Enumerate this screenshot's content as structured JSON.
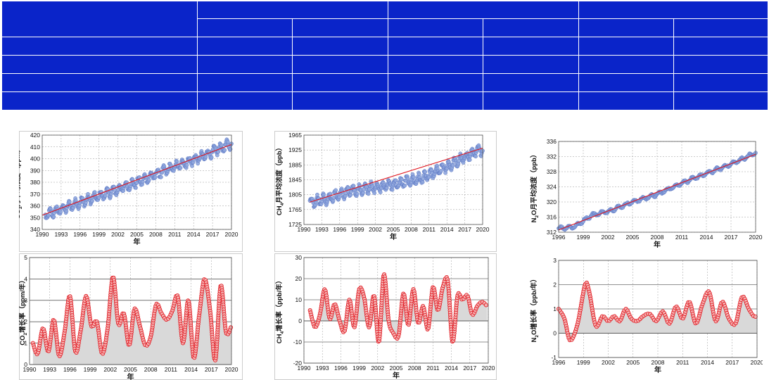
{
  "table": {
    "header_cells": 4,
    "sub_header_cells": 6,
    "body_rows": 4,
    "body_cells_per_row": 7,
    "fill_color": "#0a24c9"
  },
  "colors": {
    "marker_fill": "#8fa6dd",
    "marker_stroke": "#5b77c4",
    "trend_line": "#e0151d",
    "growth_line": "#e0151d",
    "growth_marker_fill": "#f4b0b0",
    "growth_area": "#d9d9d9"
  },
  "chart_data": [
    {
      "id": "co2-concentration",
      "type": "scatter",
      "xlabel": "年",
      "ylabel_main": "CO",
      "ylabel_sub": "2",
      "ylabel_rest": "月平均浓度（ppm）",
      "xlim": [
        1990,
        2020
      ],
      "xticks": [
        "1990",
        "1993",
        "1996",
        "1999",
        "2002",
        "2005",
        "2008",
        "2011",
        "2014",
        "2017",
        "2020"
      ],
      "ylim": [
        340,
        420
      ],
      "yticks": [
        "340",
        "350",
        "360",
        "370",
        "380",
        "390",
        "400",
        "410",
        "420"
      ],
      "grid": true,
      "trend": {
        "x": [
          1990,
          2020
        ],
        "y": [
          352,
          412
        ]
      },
      "anchors": {
        "x": [
          1990.5,
          1995,
          2000,
          2005,
          2010,
          2015,
          2020
        ],
        "y": [
          352,
          361,
          370,
          380,
          391,
          401,
          413
        ]
      },
      "seasonal_amplitude": 3.5
    },
    {
      "id": "ch4-concentration",
      "type": "scatter",
      "xlabel": "年",
      "ylabel_main": "CH",
      "ylabel_sub": "4",
      "ylabel_rest": "月平均浓度（ppb）",
      "xlim": [
        1990,
        2020
      ],
      "xticks": [
        "1990",
        "1993",
        "1996",
        "1999",
        "2002",
        "2005",
        "2008",
        "2011",
        "2014",
        "2017",
        "2020"
      ],
      "ylim": [
        1725,
        1965
      ],
      "yticks": [
        "1725",
        "1765",
        "1805",
        "1845",
        "1885",
        "1925",
        "1965"
      ],
      "grid": true,
      "trend": {
        "x": [
          1991,
          2020
        ],
        "y": [
          1785,
          1930
        ]
      },
      "anchors": {
        "x": [
          1991,
          1994,
          1998,
          2002,
          2006,
          2010,
          2014,
          2017,
          2020
        ],
        "y": [
          1785,
          1795,
          1815,
          1825,
          1835,
          1850,
          1880,
          1905,
          1928
        ]
      },
      "seasonal_amplitude": 12
    },
    {
      "id": "n2o-concentration",
      "type": "scatter",
      "xlabel": "年",
      "ylabel_main": "N",
      "ylabel_sub": "2",
      "ylabel_rest": "O月平均浓度（ppb）",
      "xlim": [
        1996,
        2020
      ],
      "xticks": [
        "1996",
        "1999",
        "2002",
        "2005",
        "2008",
        "2011",
        "2014",
        "2017",
        "2020"
      ],
      "ylim": [
        312,
        336
      ],
      "yticks": [
        "312",
        "316",
        "320",
        "324",
        "328",
        "332",
        "336"
      ],
      "grid": true,
      "trend": {
        "x": [
          1996,
          2020
        ],
        "y": [
          312.6,
          332.6
        ]
      },
      "anchors": {
        "x": [
          1996,
          1998,
          2000,
          2002,
          2005,
          2008,
          2011,
          2014,
          2017,
          2020
        ],
        "y": [
          313,
          313.5,
          316.5,
          317.5,
          320,
          322,
          325,
          327.5,
          330,
          333
        ]
      },
      "seasonal_amplitude": 0.4
    },
    {
      "id": "co2-growth-rate",
      "type": "area",
      "xlabel": "年",
      "ylabel_main": "CO",
      "ylabel_sub": "2",
      "ylabel_rest": "增长率（ppm/年）",
      "xlim": [
        1990,
        2020
      ],
      "xticks": [
        "1990",
        "1993",
        "1996",
        "1999",
        "2002",
        "2005",
        "2008",
        "2011",
        "2014",
        "2017",
        "2020"
      ],
      "ylim": [
        0,
        5
      ],
      "yticks": [
        "0",
        "1",
        "2",
        "3",
        "4",
        "5"
      ],
      "grid": true,
      "baseline": 0,
      "x": [
        1990.5,
        1991.2,
        1992,
        1992.8,
        1993.6,
        1994.4,
        1995.2,
        1996,
        1996.8,
        1997.6,
        1998.4,
        1999.2,
        2000,
        2000.8,
        2001.6,
        2002.4,
        2003.2,
        2004,
        2004.8,
        2005.6,
        2006.4,
        2007.2,
        2008,
        2008.8,
        2009.6,
        2010.4,
        2011.2,
        2012,
        2012.8,
        2013.6,
        2014.4,
        2015.2,
        2016,
        2016.8,
        2017.6,
        2018.4,
        2019.2,
        2020
      ],
      "y": [
        1.0,
        0.5,
        1.7,
        0.6,
        2.1,
        0.4,
        1.5,
        3.2,
        0.6,
        1.6,
        3.2,
        1.8,
        2.0,
        0.5,
        1.7,
        4.1,
        1.9,
        2.4,
        0.9,
        2.6,
        1.8,
        0.9,
        1.3,
        2.8,
        2.4,
        2.1,
        2.5,
        3.2,
        1.0,
        3.0,
        0.3,
        2.3,
        4.0,
        2.6,
        0.2,
        3.7,
        1.5,
        1.8
      ]
    },
    {
      "id": "ch4-growth-rate",
      "type": "area",
      "xlabel": "年",
      "ylabel_main": "CH",
      "ylabel_sub": "4",
      "ylabel_rest": "增长率（ppb/年）",
      "xlim": [
        1990,
        2020
      ],
      "xticks": [
        "1990",
        "1993",
        "1996",
        "1999",
        "2002",
        "2005",
        "2008",
        "2011",
        "2014",
        "2017",
        "2020"
      ],
      "ylim": [
        -20,
        30
      ],
      "yticks": [
        "-20",
        "-10",
        "0",
        "10",
        "20",
        "30"
      ],
      "grid": true,
      "baseline": 0,
      "x": [
        1991,
        1991.8,
        1992.6,
        1993.4,
        1994.2,
        1995,
        1995.8,
        1996.6,
        1997.4,
        1998.2,
        1999,
        1999.8,
        2000.6,
        2001.4,
        2002.2,
        2003,
        2003.8,
        2004.6,
        2005.4,
        2006.2,
        2007,
        2007.8,
        2008.6,
        2009.4,
        2010.2,
        2011,
        2011.8,
        2012.6,
        2013.4,
        2014.2,
        2015,
        2015.8,
        2016.6,
        2017.4,
        2018.2,
        2019,
        2019.8
      ],
      "y": [
        5,
        -3,
        3,
        15,
        1,
        8,
        0,
        -5,
        10,
        -3,
        15,
        11,
        -3,
        12,
        -10,
        22,
        0,
        -6,
        -7,
        13,
        -2,
        15,
        -1,
        7,
        -4,
        16,
        5,
        16,
        19,
        -10,
        12,
        10,
        12,
        3,
        7,
        9,
        7
      ]
    },
    {
      "id": "n2o-growth-rate",
      "type": "area",
      "xlabel": "年",
      "ylabel_main": "N",
      "ylabel_sub": "2",
      "ylabel_rest": "O增长率（ppb/年）",
      "xlim": [
        1996,
        2020
      ],
      "xticks": [
        "1996",
        "1999",
        "2002",
        "2005",
        "2008",
        "2011",
        "2014",
        "2017",
        "2020"
      ],
      "ylim": [
        -1,
        3
      ],
      "yticks": [
        "-1",
        "0",
        "1",
        "2",
        "3"
      ],
      "grid": true,
      "baseline": 0,
      "x": [
        1996,
        1996.7,
        1997.4,
        1998.3,
        1999.2,
        1999.7,
        2000.5,
        2001.3,
        2002,
        2002.7,
        2003.4,
        2004.1,
        2004.8,
        2005.5,
        2006.2,
        2007,
        2007.8,
        2008.6,
        2009.4,
        2010.2,
        2011,
        2011.8,
        2012.6,
        2013.4,
        2014.2,
        2015,
        2015.8,
        2016.6,
        2017.4,
        2018.2,
        2019,
        2019.6,
        2020
      ],
      "y": [
        1.0,
        0.6,
        -0.3,
        0.4,
        2.0,
        1.7,
        0.3,
        0.7,
        0.5,
        0.7,
        0.5,
        1.0,
        0.6,
        0.5,
        0.7,
        0.8,
        0.5,
        0.9,
        0.4,
        1.1,
        0.6,
        1.3,
        0.4,
        1.2,
        1.7,
        0.5,
        1.3,
        0.6,
        0.4,
        1.5,
        1.0,
        0.7,
        0.7
      ]
    }
  ]
}
